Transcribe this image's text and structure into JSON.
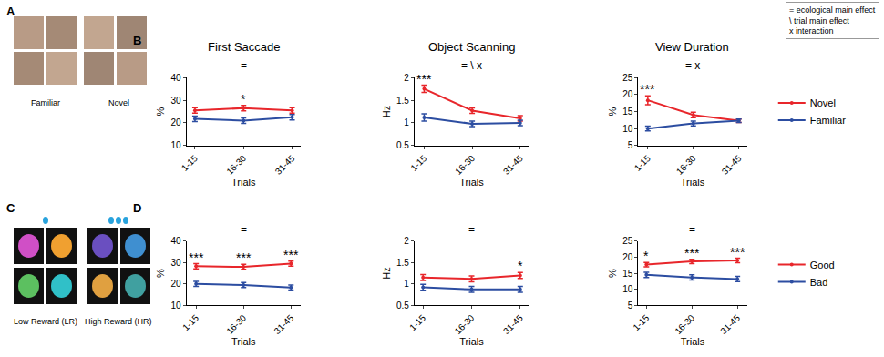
{
  "key": [
    "= ecological main effect",
    "\\ trial main effect",
    "x interaction"
  ],
  "panels": [
    {
      "label": "A",
      "captions": [
        "Familiar",
        "Novel"
      ]
    },
    {
      "label": "B"
    },
    {
      "label": "C",
      "captions": [
        "Low Reward (LR)",
        "High Reward (HR)"
      ]
    },
    {
      "label": "D"
    }
  ],
  "chart_data": [
    {
      "type": "line",
      "title": "First Saccade",
      "effects": "=",
      "xlabel": "Trials",
      "ylabel": "%",
      "categories": [
        "1-15",
        "16-30",
        "31-45"
      ],
      "series": [
        {
          "name": "Novel",
          "color": "#e8262b",
          "values": [
            25.5,
            26.5,
            25.5
          ],
          "errors": [
            1.2,
            1.2,
            1.2
          ]
        },
        {
          "name": "Familiar",
          "color": "#2c4da1",
          "values": [
            21.8,
            21,
            22.5
          ],
          "errors": [
            1.2,
            1.2,
            1.2
          ]
        }
      ],
      "ylim": [
        10,
        40
      ],
      "yticks": [
        10,
        20,
        30,
        40
      ],
      "significance": [
        {
          "category": "16-30",
          "label": "*"
        }
      ]
    },
    {
      "type": "line",
      "title": "Object Scanning",
      "effects": "= \\ x",
      "xlabel": "Trials",
      "ylabel": "Hz",
      "categories": [
        "1-15",
        "16-30",
        "31-45"
      ],
      "series": [
        {
          "name": "Novel",
          "color": "#e8262b",
          "values": [
            1.75,
            1.27,
            1.1
          ],
          "errors": [
            0.08,
            0.06,
            0.06
          ]
        },
        {
          "name": "Familiar",
          "color": "#2c4da1",
          "values": [
            1.12,
            0.98,
            1.0
          ],
          "errors": [
            0.08,
            0.06,
            0.06
          ]
        }
      ],
      "ylim": [
        0.5,
        2
      ],
      "yticks": [
        0.5,
        1,
        1.5,
        2
      ],
      "significance": [
        {
          "category": "1-15",
          "label": "***"
        }
      ]
    },
    {
      "type": "line",
      "title": "View Duration",
      "effects": "= x",
      "xlabel": "Trials",
      "ylabel": "%",
      "categories": [
        "1-15",
        "16-30",
        "31-45"
      ],
      "series": [
        {
          "name": "Novel",
          "color": "#e8262b",
          "values": [
            18.3,
            14,
            12.3
          ],
          "errors": [
            1.3,
            0.8,
            0.5
          ]
        },
        {
          "name": "Familiar",
          "color": "#2c4da1",
          "values": [
            10,
            11.5,
            12.3
          ],
          "errors": [
            0.7,
            0.7,
            0.5
          ]
        }
      ],
      "ylim": [
        5,
        25
      ],
      "yticks": [
        5,
        10,
        15,
        20,
        25
      ],
      "significance": [
        {
          "category": "1-15",
          "label": "***"
        }
      ],
      "legend": "right"
    },
    {
      "type": "line",
      "effects": "=",
      "xlabel": "Trials",
      "ylabel": "%",
      "categories": [
        "1-15",
        "16-30",
        "31-45"
      ],
      "series": [
        {
          "name": "Good",
          "color": "#e8262b",
          "values": [
            28.3,
            28,
            29.5
          ],
          "errors": [
            1.2,
            1.2,
            1.2
          ]
        },
        {
          "name": "Bad",
          "color": "#2c4da1",
          "values": [
            20,
            19.5,
            18.3
          ],
          "errors": [
            1.2,
            1.2,
            1.2
          ]
        }
      ],
      "ylim": [
        10,
        40
      ],
      "yticks": [
        10,
        20,
        30,
        40
      ],
      "significance": [
        {
          "category": "1-15",
          "label": "***"
        },
        {
          "category": "16-30",
          "label": "***"
        },
        {
          "category": "31-45",
          "label": "***"
        }
      ]
    },
    {
      "type": "line",
      "effects": "=",
      "xlabel": "Trials",
      "ylabel": "Hz",
      "categories": [
        "1-15",
        "16-30",
        "31-45"
      ],
      "series": [
        {
          "name": "Good",
          "color": "#e8262b",
          "values": [
            1.15,
            1.12,
            1.2
          ],
          "errors": [
            0.07,
            0.07,
            0.07
          ]
        },
        {
          "name": "Bad",
          "color": "#2c4da1",
          "values": [
            0.92,
            0.87,
            0.87
          ],
          "errors": [
            0.07,
            0.07,
            0.07
          ]
        }
      ],
      "ylim": [
        0.5,
        2
      ],
      "yticks": [
        0.5,
        1,
        1.5,
        2
      ],
      "significance": [
        {
          "category": "31-45",
          "label": "*"
        }
      ]
    },
    {
      "type": "line",
      "effects": "=",
      "xlabel": "Trials",
      "ylabel": "%",
      "categories": [
        "1-15",
        "16-30",
        "31-45"
      ],
      "series": [
        {
          "name": "Good",
          "color": "#e8262b",
          "values": [
            17.7,
            18.7,
            19
          ],
          "errors": [
            0.7,
            0.7,
            0.7
          ]
        },
        {
          "name": "Bad",
          "color": "#2c4da1",
          "values": [
            14.5,
            13.7,
            13.2
          ],
          "errors": [
            0.8,
            0.8,
            0.8
          ]
        }
      ],
      "ylim": [
        5,
        25
      ],
      "yticks": [
        5,
        10,
        15,
        20,
        25
      ],
      "significance": [
        {
          "category": "1-15",
          "label": "*"
        },
        {
          "category": "16-30",
          "label": "***"
        },
        {
          "category": "31-45",
          "label": "***"
        }
      ],
      "legend": "right"
    }
  ]
}
